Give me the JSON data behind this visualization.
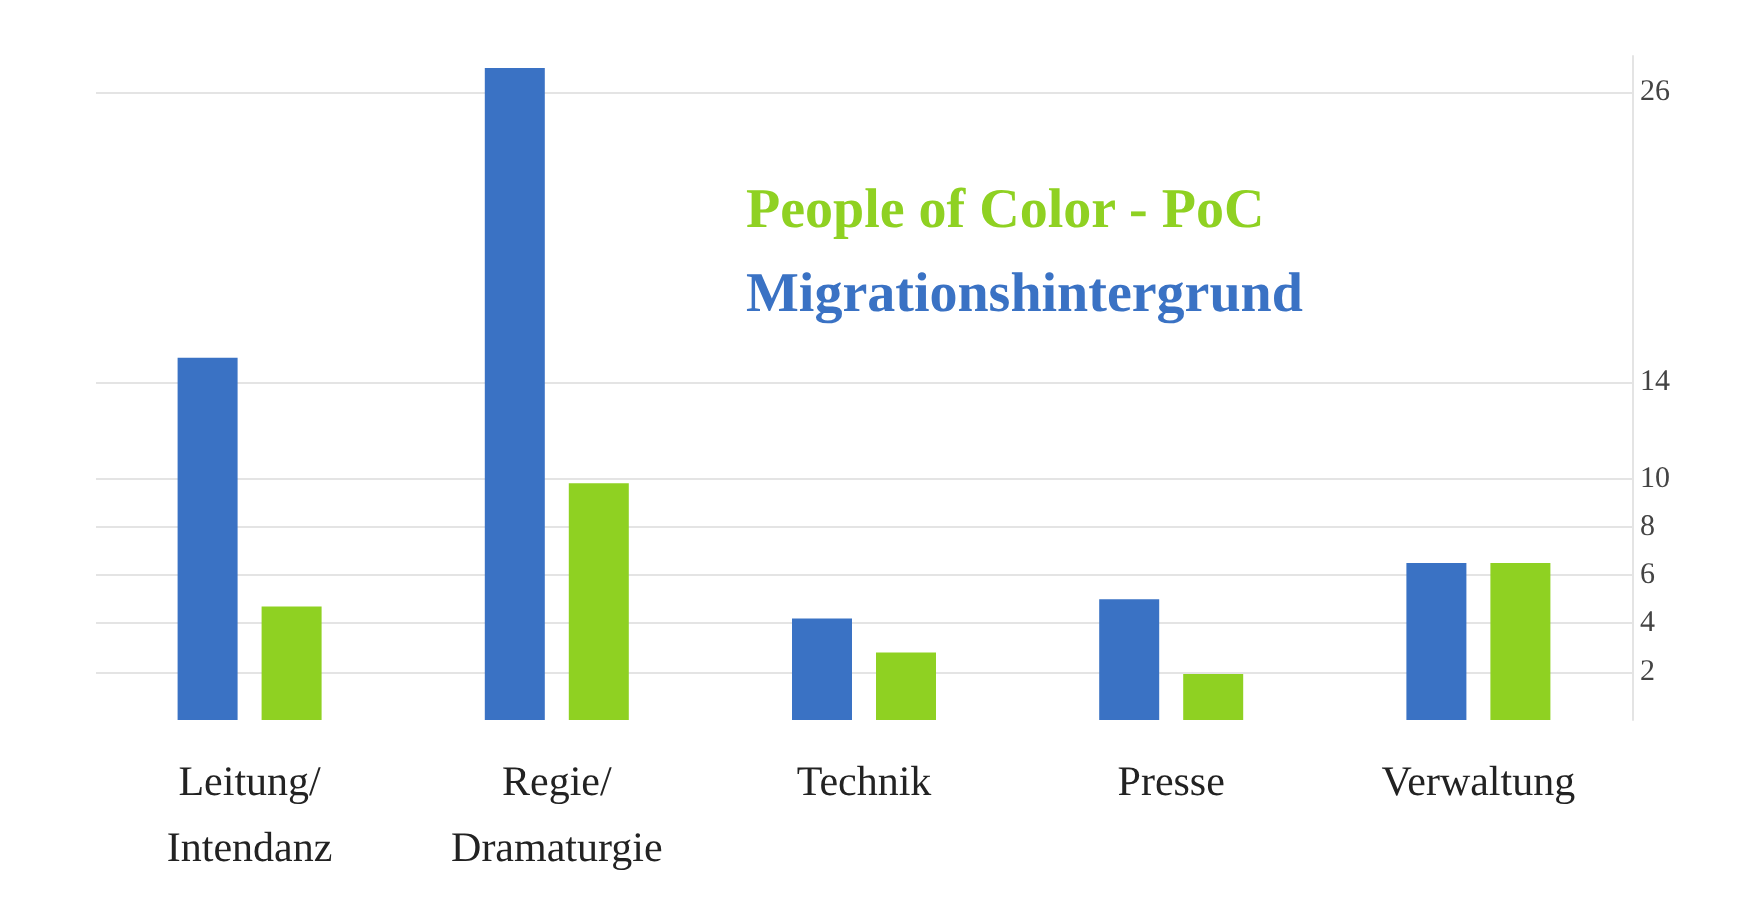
{
  "chart_data": {
    "type": "bar",
    "categories": [
      "Leitung/\nIntendanz",
      "Regie/\nDramaturgie",
      "Technik",
      "Presse",
      "Verwaltung"
    ],
    "series": [
      {
        "name": "Migrationshintergrund",
        "color": "#3a72c4",
        "values": [
          15,
          27,
          4.2,
          5,
          6.5
        ]
      },
      {
        "name": "People of Color - PoC",
        "color": "#8fd122",
        "values": [
          4.7,
          9.8,
          2.8,
          1.9,
          6.5
        ]
      }
    ],
    "ylim": [
      0,
      27.5
    ],
    "yticks": [
      2,
      4,
      6,
      8,
      10,
      14,
      26
    ],
    "grid": "y",
    "legend": "top"
  }
}
